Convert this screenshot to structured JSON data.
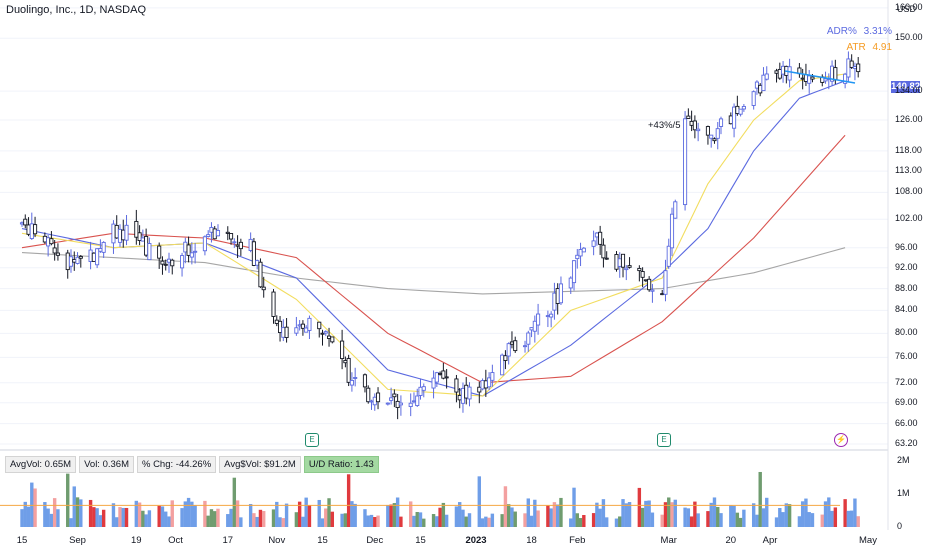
{
  "header": {
    "title": "Duolingo, Inc., 1D, NASDAQ",
    "adr_label": "ADR%",
    "adr_value": "3.31%",
    "atr_label": "ATR",
    "atr_value": "4.91"
  },
  "colors": {
    "up": "#5b6ae0",
    "down": "#131722",
    "ma10": "#f2dd5f",
    "ma21": "#5b6ae0",
    "ma50": "#d9534f",
    "ma200": "#a6a6a6",
    "trendline": "#2196f3",
    "vol_blue": "#6f9ee8",
    "vol_red": "#e03a3e",
    "vol_green": "#6f9c6f",
    "vol_pink": "#f3a0a0",
    "avgvol": "#f5a742"
  },
  "stats": {
    "avg_vol": "AvgVol: 0.65M",
    "vol": "Vol: 0.36M",
    "chg": "% Chg: -44.26%",
    "avg_dollar_vol": "Avg$Vol: $91.2M",
    "ud_ratio": "U/D Ratio: 1.43"
  },
  "annotation": "+43%/5",
  "axis": {
    "currency": "USD",
    "last_price": "140.82",
    "price_labels": [
      "160.00",
      "150.00",
      "134.00",
      "126.00",
      "118.00",
      "113.00",
      "108.00",
      "102.00",
      "96.00",
      "92.00",
      "88.00",
      "84.00",
      "80.00",
      "76.00",
      "72.00",
      "69.00",
      "66.00",
      "63.20"
    ],
    "volume_labels": [
      "2M",
      "1M",
      "0"
    ],
    "x_labels": [
      "15",
      "Sep",
      "19",
      "Oct",
      "17",
      "Nov",
      "15",
      "Dec",
      "15",
      "2023",
      "18",
      "Feb",
      "Mar",
      "20",
      "Apr",
      "May"
    ]
  },
  "events": [
    {
      "type": "earnings",
      "label": "E"
    },
    {
      "type": "earnings",
      "label": "E"
    },
    {
      "type": "dividend",
      "label": "⚡"
    }
  ],
  "chart_data": {
    "type": "candlestick",
    "title": "Duolingo, Inc., 1D, NASDAQ",
    "y_scale": "log",
    "ylim": [
      63.2,
      160
    ],
    "x_range": [
      "2022-08-15",
      "2023-05-01"
    ],
    "last_close": 140.82,
    "series": [
      {
        "name": "Close (approx.)",
        "points": [
          [
            "2022-08-15",
            101
          ],
          [
            "2022-08-22",
            97
          ],
          [
            "2022-08-29",
            93
          ],
          [
            "2022-09-06",
            95
          ],
          [
            "2022-09-12",
            100
          ],
          [
            "2022-09-19",
            98
          ],
          [
            "2022-09-26",
            93
          ],
          [
            "2022-10-03",
            95
          ],
          [
            "2022-10-10",
            98
          ],
          [
            "2022-10-17",
            100
          ],
          [
            "2022-10-24",
            96
          ],
          [
            "2022-10-31",
            82
          ],
          [
            "2022-11-07",
            80
          ],
          [
            "2022-11-14",
            82
          ],
          [
            "2022-11-21",
            75
          ],
          [
            "2022-11-28",
            70
          ],
          [
            "2022-12-05",
            69
          ],
          [
            "2022-12-12",
            70
          ],
          [
            "2022-12-19",
            73
          ],
          [
            "2022-12-27",
            70
          ],
          [
            "2023-01-03",
            71
          ],
          [
            "2023-01-09",
            76
          ],
          [
            "2023-01-17",
            80
          ],
          [
            "2023-01-23",
            84
          ],
          [
            "2023-01-30",
            91
          ],
          [
            "2023-02-06",
            98
          ],
          [
            "2023-02-13",
            93
          ],
          [
            "2023-02-21",
            90
          ],
          [
            "2023-02-27",
            88
          ],
          [
            "2023-03-06",
            125
          ],
          [
            "2023-03-13",
            120
          ],
          [
            "2023-03-20",
            127
          ],
          [
            "2023-03-27",
            133
          ],
          [
            "2023-04-03",
            141
          ],
          [
            "2023-04-10",
            138
          ],
          [
            "2023-04-17",
            137
          ],
          [
            "2023-04-24",
            140.82
          ]
        ]
      },
      {
        "name": "MA10 (approx.)",
        "points": [
          [
            "2022-08-15",
            99
          ],
          [
            "2022-09-12",
            96
          ],
          [
            "2022-10-10",
            97
          ],
          [
            "2022-11-07",
            86
          ],
          [
            "2022-12-05",
            71
          ],
          [
            "2023-01-03",
            70
          ],
          [
            "2023-01-30",
            84
          ],
          [
            "2023-02-27",
            90
          ],
          [
            "2023-03-13",
            110
          ],
          [
            "2023-03-27",
            126
          ],
          [
            "2023-04-10",
            137
          ],
          [
            "2023-04-24",
            139
          ]
        ]
      },
      {
        "name": "MA21 (approx.)",
        "points": [
          [
            "2022-08-15",
            100
          ],
          [
            "2022-09-12",
            96
          ],
          [
            "2022-10-10",
            97
          ],
          [
            "2022-11-07",
            90
          ],
          [
            "2022-12-05",
            74
          ],
          [
            "2023-01-03",
            70
          ],
          [
            "2023-01-30",
            78
          ],
          [
            "2023-02-27",
            91
          ],
          [
            "2023-03-13",
            100
          ],
          [
            "2023-03-27",
            118
          ],
          [
            "2023-04-10",
            132
          ],
          [
            "2023-04-24",
            137
          ]
        ]
      },
      {
        "name": "MA50 (approx.)",
        "points": [
          [
            "2022-08-15",
            96
          ],
          [
            "2022-09-12",
            99
          ],
          [
            "2022-10-10",
            98
          ],
          [
            "2022-11-07",
            94
          ],
          [
            "2022-12-05",
            80
          ],
          [
            "2023-01-03",
            72
          ],
          [
            "2023-01-30",
            73
          ],
          [
            "2023-02-27",
            82
          ],
          [
            "2023-03-27",
            98
          ],
          [
            "2023-04-24",
            122
          ]
        ]
      },
      {
        "name": "MA200 (approx.)",
        "points": [
          [
            "2022-08-15",
            95
          ],
          [
            "2022-10-10",
            93
          ],
          [
            "2022-11-07",
            90
          ],
          [
            "2022-12-05",
            88
          ],
          [
            "2023-01-03",
            87
          ],
          [
            "2023-02-27",
            88
          ],
          [
            "2023-03-27",
            91
          ],
          [
            "2023-04-24",
            96
          ]
        ]
      }
    ],
    "volume_ylim": [
      0,
      2200000
    ],
    "avg_volume": 650000,
    "current_volume": 360000
  }
}
